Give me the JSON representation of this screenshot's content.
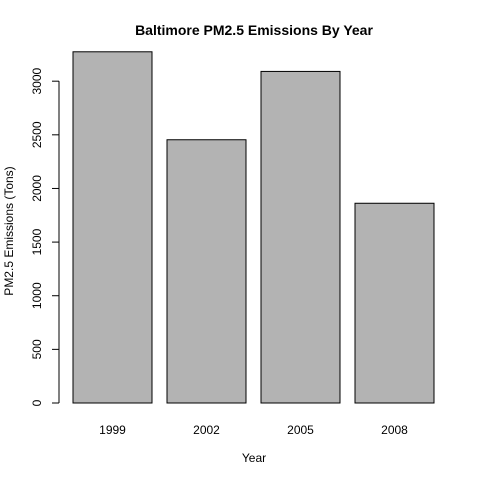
{
  "chart_data": {
    "type": "bar",
    "title": "Baltimore PM2.5 Emissions By Year",
    "xlabel": "Year",
    "ylabel": "PM2.5 Emissions (Tons)",
    "categories": [
      "1999",
      "2002",
      "2005",
      "2008"
    ],
    "values": [
      3274,
      2454,
      3091,
      1862
    ],
    "ylim": [
      0,
      3300
    ],
    "yticks": [
      0,
      500,
      1000,
      1500,
      2000,
      2500,
      3000
    ],
    "ytick_labels": [
      "0",
      "500",
      "1000",
      "1500",
      "2000",
      "2500",
      "3000"
    ],
    "grid": false,
    "legend": "none",
    "bar_color": "#b3b3b3",
    "bar_border_color": "#000000"
  }
}
